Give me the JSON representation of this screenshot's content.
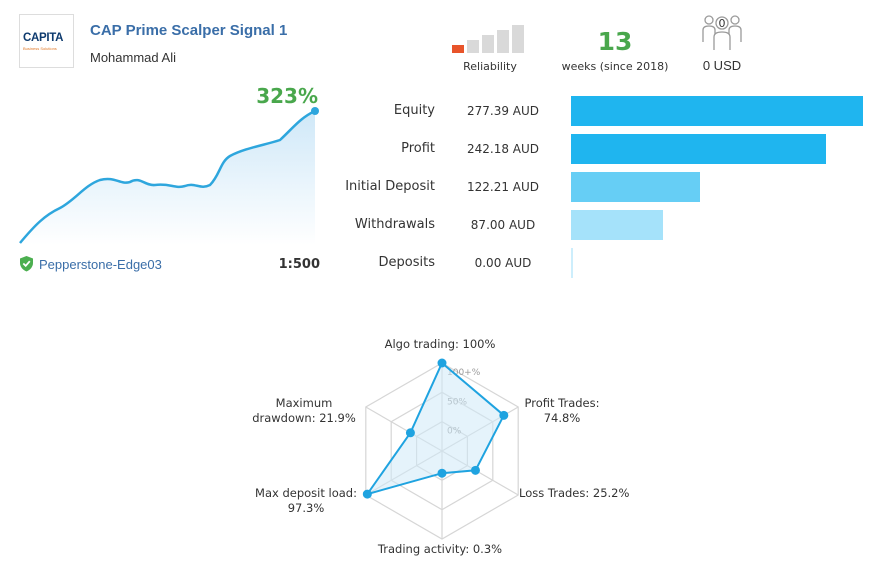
{
  "header": {
    "logo_text": "CAPITA",
    "logo_subtext": "Business Solutions",
    "title": "CAP Prime Scalper Signal 1",
    "author": "Mohammad Ali"
  },
  "metrics": {
    "reliability_label": "Reliability",
    "reliability_level": 1,
    "reliability_max": 5,
    "weeks": "13",
    "weeks_caption": "weeks (since 2018)",
    "subscribers": "0",
    "subscription_price": "0 USD"
  },
  "growth_chart": {
    "growth": "323%",
    "broker": "Pepperstone-Edge03",
    "leverage": "1:500",
    "colors": {
      "line": "#2ea6dd",
      "fill": "#dbeefa",
      "growth": "#49a74c"
    }
  },
  "stats": [
    {
      "label": "Equity",
      "value": "277.39 AUD",
      "amount": 277.39,
      "color": "#1fb5ef"
    },
    {
      "label": "Profit",
      "value": "242.18 AUD",
      "amount": 242.18,
      "color": "#1fb5ef"
    },
    {
      "label": "Initial Deposit",
      "value": "122.21 AUD",
      "amount": 122.21,
      "color": "#66cef5"
    },
    {
      "label": "Withdrawals",
      "value": "87.00 AUD",
      "amount": 87.0,
      "color": "#a5e2fa"
    },
    {
      "label": "Deposits",
      "value": "0.00 AUD",
      "amount": 0.0,
      "color": "#cdeefc"
    }
  ],
  "radar": {
    "scale_labels": [
      "100+%",
      "50%",
      "0%"
    ],
    "axes": [
      {
        "label": "Algo trading: 100%",
        "value": 100
      },
      {
        "label": "Profit Trades:\n74.8%",
        "value": 74.8
      },
      {
        "label": "Loss Trades: 25.2%",
        "value": 25.2
      },
      {
        "label": "Trading activity: 0.3%",
        "value": 0.3
      },
      {
        "label": "Max deposit load:\n97.3%",
        "value": 97.3
      },
      {
        "label": "Maximum\ndrawdown: 21.9%",
        "value": 21.9
      }
    ],
    "colors": {
      "line": "#1fa3e0",
      "fill": "#cfeaf8"
    }
  }
}
